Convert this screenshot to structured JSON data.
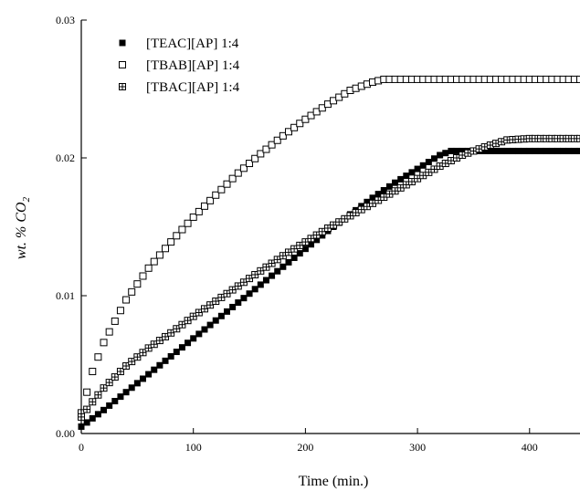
{
  "chart_data": {
    "type": "scatter",
    "title": "",
    "xlabel": "Time (min.)",
    "ylabel_main": "wt. % CO",
    "ylabel_sub": "2",
    "xlim": [
      0,
      445
    ],
    "ylim": [
      0,
      0.03
    ],
    "x_ticks": [
      0,
      100,
      200,
      300,
      400
    ],
    "x_tick_labels": [
      "0",
      "100",
      "200",
      "300",
      "400"
    ],
    "y_ticks": [
      0,
      0.01,
      0.02,
      0.03
    ],
    "y_tick_labels": [
      "0.00",
      "0.01",
      "0.02",
      "0.03"
    ],
    "grid": false,
    "legend_position": "top-left",
    "series": [
      {
        "name": "[TEAC][AP] 1:4",
        "marker": "filled-square",
        "x": [
          0,
          20,
          40,
          60,
          80,
          100,
          120,
          140,
          160,
          180,
          200,
          220,
          240,
          260,
          280,
          300,
          320,
          330,
          340,
          360,
          380,
          400,
          420,
          445
        ],
        "y": [
          0.0005,
          0.0017,
          0.003,
          0.0043,
          0.0056,
          0.0069,
          0.0082,
          0.0095,
          0.0108,
          0.0121,
          0.0134,
          0.0147,
          0.0159,
          0.0171,
          0.0182,
          0.0192,
          0.0202,
          0.0205,
          0.0205,
          0.0205,
          0.0205,
          0.0205,
          0.0205,
          0.0205
        ]
      },
      {
        "name": "[TBAB][AP] 1:4",
        "marker": "open-square",
        "x": [
          0,
          10,
          20,
          40,
          60,
          80,
          100,
          120,
          140,
          160,
          180,
          200,
          220,
          240,
          260,
          270,
          280,
          300,
          320,
          340,
          360,
          380,
          400,
          420,
          445
        ],
        "y": [
          0.0015,
          0.0045,
          0.0066,
          0.0097,
          0.012,
          0.0139,
          0.0157,
          0.0173,
          0.0189,
          0.0203,
          0.0216,
          0.0228,
          0.0239,
          0.0249,
          0.0255,
          0.0257,
          0.0257,
          0.0257,
          0.0257,
          0.0257,
          0.0257,
          0.0257,
          0.0257,
          0.0257,
          0.0257
        ]
      },
      {
        "name": "[TBAC][AP] 1:4",
        "marker": "crossed-square",
        "x": [
          0,
          10,
          20,
          40,
          60,
          80,
          100,
          120,
          140,
          160,
          180,
          200,
          220,
          240,
          260,
          280,
          300,
          320,
          340,
          360,
          380,
          400,
          420,
          445
        ],
        "y": [
          0.0012,
          0.0023,
          0.0033,
          0.0049,
          0.0062,
          0.0073,
          0.0085,
          0.0096,
          0.0107,
          0.0118,
          0.0129,
          0.0139,
          0.0149,
          0.0158,
          0.0167,
          0.0176,
          0.0185,
          0.0194,
          0.0202,
          0.0208,
          0.0213,
          0.0214,
          0.0214,
          0.0214
        ]
      }
    ]
  }
}
